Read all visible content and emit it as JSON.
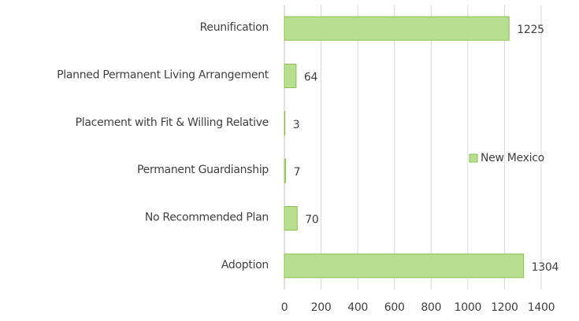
{
  "chart_data": {
    "type": "hbar",
    "categories": [
      "Reunification",
      "Planned Permanent Living Arrangement",
      "Placement with Fit & Willing Relative",
      "Permanent Guardianship",
      "No Recommended Plan",
      "Adoption"
    ],
    "series": [
      {
        "name": "New Mexico",
        "color": "#b8de8f",
        "values": [
          1225,
          64,
          3,
          7,
          70,
          1304
        ]
      }
    ],
    "xlim": [
      0,
      1400
    ],
    "xticks": [
      0,
      200,
      400,
      600,
      800,
      1000,
      1200,
      1400
    ],
    "grid": true,
    "legend": "right"
  }
}
